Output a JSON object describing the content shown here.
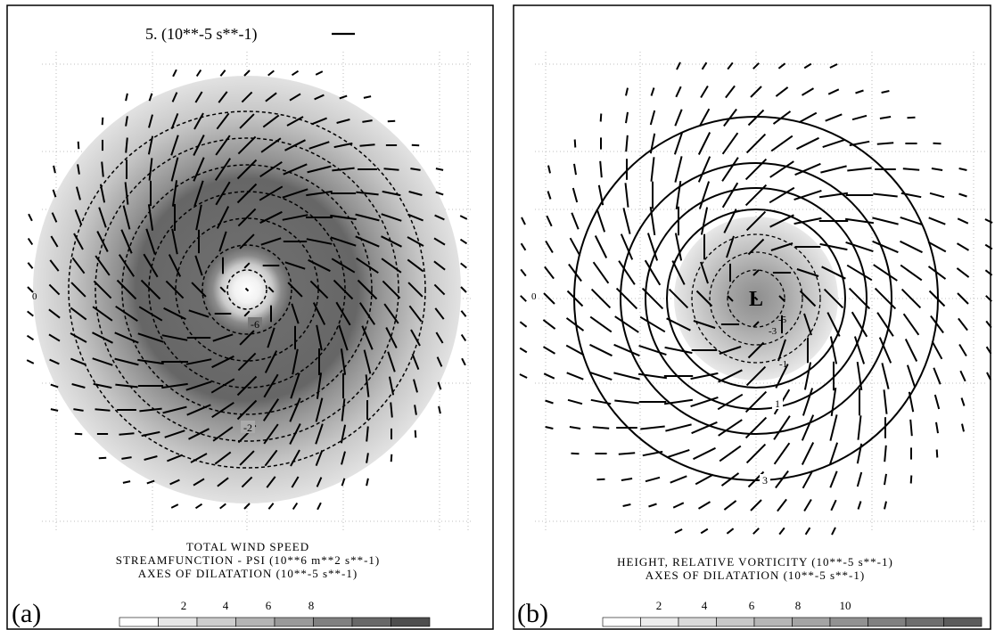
{
  "panel_a": {
    "letter": "(a)",
    "scale_value": "5. (10**-5 s**-1)",
    "axis_zero": "0",
    "caption": [
      "TOTAL WIND SPEED",
      "STREAMFUNCTION - PSI (10**6 m**2 s**-1)",
      "AXES OF DILATATION (10**-5 s**-1)"
    ],
    "contour_labels": [
      "-6",
      "-2"
    ],
    "legend_ticks": [
      "2",
      "4",
      "6",
      "8"
    ],
    "legend_colors": [
      "#ffffff",
      "#e6e6e6",
      "#cdcdcd",
      "#b4b4b4",
      "#9a9a9a",
      "#808080",
      "#686868",
      "#4e4e4e"
    ]
  },
  "panel_b": {
    "letter": "(b)",
    "axis_zero": "0",
    "low_marker": "L",
    "caption": [
      "HEIGHT, RELATIVE VORTICITY (10**-5 s**-1)",
      "AXES OF DILATATION (10**-5 s**-1)"
    ],
    "contour_labels": [
      "-5",
      "-3",
      "-1",
      "1",
      "3"
    ],
    "legend_ticks": [
      "2",
      "4",
      "6",
      "8",
      "10"
    ],
    "legend_colors": [
      "#ffffff",
      "#ececec",
      "#dadada",
      "#c8c8c8",
      "#b6b6b6",
      "#a4a4a4",
      "#929292",
      "#808080",
      "#6e6e6e",
      "#5c5c5c"
    ]
  }
}
